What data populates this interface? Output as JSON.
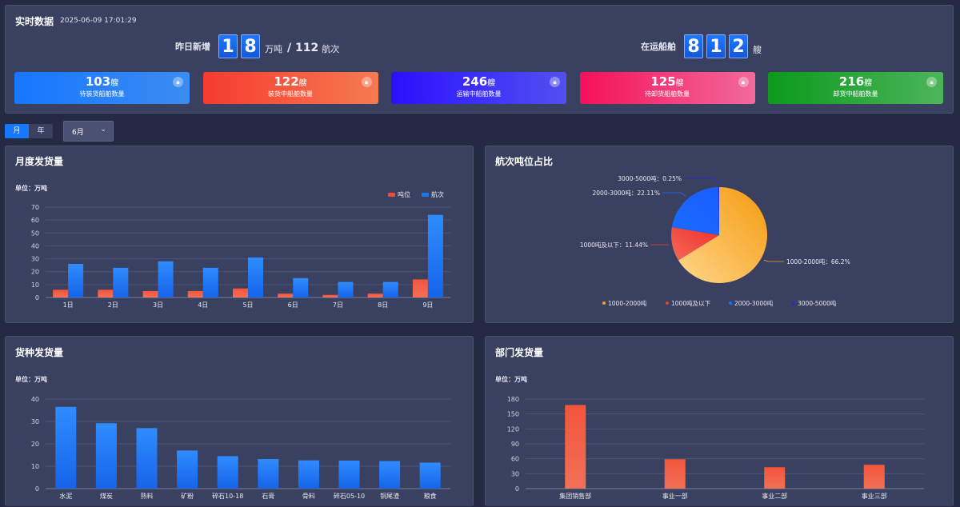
{
  "header": {
    "title": "实时数据",
    "timestamp": "2025-06-09 17:01:29",
    "yesterday_label": "昨日新增",
    "yesterday_digits": [
      "1",
      "8"
    ],
    "yesterday_unit": "万吨",
    "voyage_text": "/ 112",
    "voyage_unit": "航次",
    "transit_label": "在运船舶",
    "transit_digits": [
      "8",
      "1",
      "2"
    ],
    "transit_unit": "艘"
  },
  "stats": [
    {
      "value": "103",
      "unit": "艘",
      "label": "待装货船舶数量",
      "color_from": "#1677ff",
      "color_to": "#3b8cf0"
    },
    {
      "value": "122",
      "unit": "艘",
      "label": "装货中船舶数量",
      "color_from": "#f53b2f",
      "color_to": "#f57a52"
    },
    {
      "value": "246",
      "unit": "艘",
      "label": "运输中船舶数量",
      "color_from": "#2a10ff",
      "color_to": "#5050f0"
    },
    {
      "value": "125",
      "unit": "艘",
      "label": "待卸货船舶数量",
      "color_from": "#f5105a",
      "color_to": "#f26a9a"
    },
    {
      "value": "216",
      "unit": "艘",
      "label": "卸货中船舶数量",
      "color_from": "#0b9a1c",
      "color_to": "#4cb45a"
    }
  ],
  "controls": {
    "tab_month": "月",
    "tab_year": "年",
    "select_value": "6月"
  },
  "panels": {
    "monthly_title": "月度发货量",
    "monthly_unit": "单位：万吨",
    "pie_title": "航次吨位占比",
    "cargo_title": "货种发货量",
    "cargo_unit": "单位：万吨",
    "dept_title": "部门发货量",
    "dept_unit": "单位：万吨"
  },
  "chart_data": [
    {
      "type": "bar",
      "title": "月度发货量",
      "categories": [
        "1日",
        "2日",
        "3日",
        "4日",
        "5日",
        "6日",
        "7日",
        "8日",
        "9日"
      ],
      "series": [
        {
          "name": "吨位",
          "values": [
            6,
            6,
            5,
            5,
            7,
            3,
            2,
            3,
            14
          ],
          "color": "#f04a3a"
        },
        {
          "name": "航次",
          "values": [
            26,
            23,
            28,
            23,
            31,
            15,
            12,
            12,
            64
          ],
          "color": "#1a78ff"
        }
      ],
      "yticks": [
        0,
        10,
        20,
        30,
        40,
        50,
        60,
        70
      ],
      "ylim": [
        0,
        70
      ],
      "legend": "top-right"
    },
    {
      "type": "pie",
      "title": "航次吨位占比",
      "slices": [
        {
          "name": "1000-2000吨",
          "value": 66.2,
          "label": "1000-2000吨：66.2%",
          "color": "#f5a020"
        },
        {
          "name": "1000吨及以下",
          "value": 11.44,
          "label": "1000吨及以下：11.44%",
          "color": "#f03a2a"
        },
        {
          "name": "2000-3000吨",
          "value": 22.11,
          "label": "2000-3000吨：22.11%",
          "color": "#1a6cff"
        },
        {
          "name": "3000-5000吨",
          "value": 0.25,
          "label": "3000-5000吨：0.25%",
          "color": "#3020e0"
        }
      ],
      "legend": "bottom"
    },
    {
      "type": "bar",
      "title": "货种发货量",
      "categories": [
        "水泥",
        "煤炭",
        "熟料",
        "矿粉",
        "碎石10-18",
        "石膏",
        "骨料",
        "碎石05-10",
        "铜尾渣",
        "粮食"
      ],
      "values": [
        36.5,
        29.2,
        27,
        17,
        14.5,
        13.2,
        12.6,
        12.5,
        12.3,
        11.6
      ],
      "color": "#1a78ff",
      "yticks": [
        0,
        10,
        20,
        30,
        40
      ],
      "ylim": [
        0,
        40
      ]
    },
    {
      "type": "bar",
      "title": "部门发货量",
      "categories": [
        "集团销售部",
        "事业一部",
        "事业二部",
        "事业三部"
      ],
      "values": [
        168,
        59,
        43,
        48
      ],
      "color": "#f04a3a",
      "yticks": [
        0,
        30,
        60,
        90,
        120,
        150,
        180
      ],
      "ylim": [
        0,
        180
      ]
    }
  ]
}
